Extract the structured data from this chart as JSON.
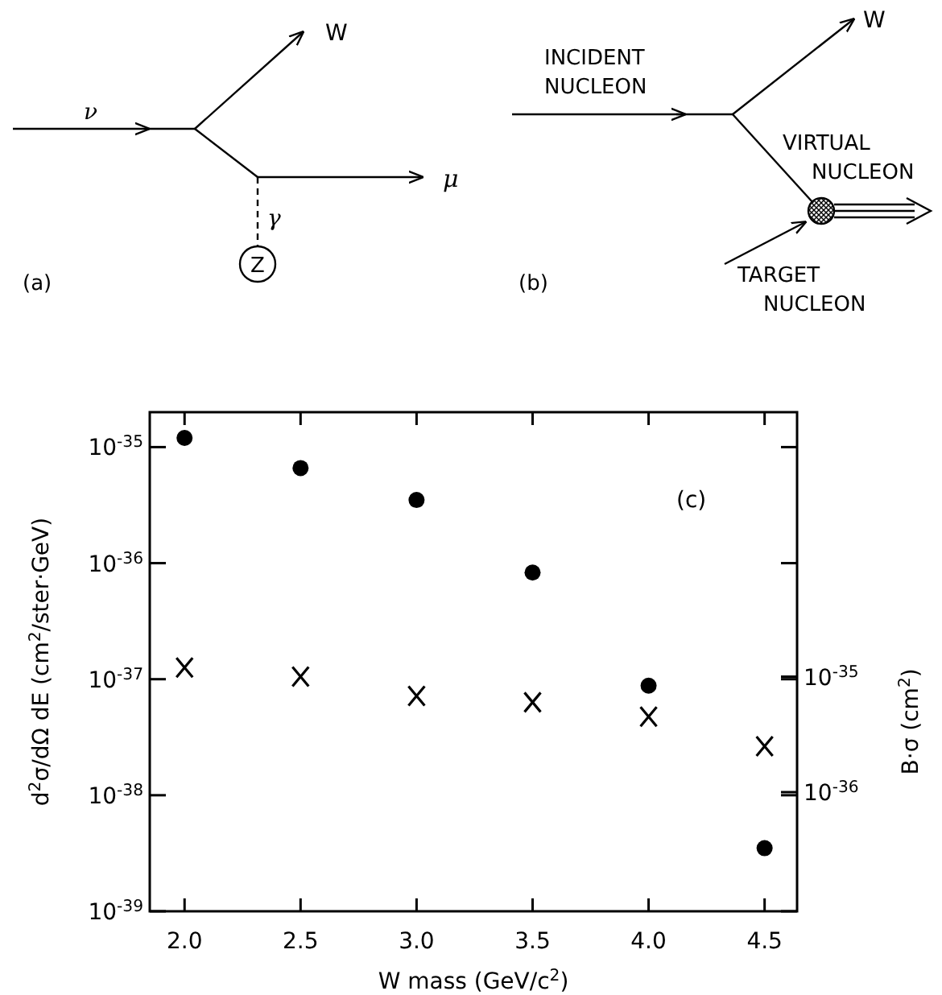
{
  "chart_data": {
    "type": "scatter",
    "xlabel": "W mass (GeV/c$^{2}$)",
    "ylabel": "d$^{2}$σ/dΩ dE (cm$^{2}$/ster·GeV)",
    "y2label": "B·σ (cm$^{2}$)",
    "x": [
      2.0,
      2.5,
      3.0,
      3.5,
      4.0,
      4.5
    ],
    "series": [
      {
        "marker": "circle",
        "color": "#000000",
        "values": [
          1.2e-35,
          6.6e-36,
          3.5e-36,
          8.3e-37,
          8.8e-38,
          3.5e-39
        ]
      },
      {
        "marker": "cross",
        "color": "#000000",
        "axis": "y2",
        "values": [
          1.2e-35,
          1e-35,
          6.8e-36,
          6e-36,
          4.5e-36,
          2.5e-36
        ]
      }
    ],
    "log": "y",
    "xlim": [
      1.85,
      4.64
    ],
    "xticks": [
      {
        "value": 2,
        "label": "2.0"
      },
      2.5,
      {
        "value": 3,
        "label": "3.0"
      },
      3.5,
      {
        "value": 4,
        "label": "4.0"
      },
      4.5
    ],
    "ylim": [
      1e-39,
      2e-35
    ],
    "yticks": [
      {
        "value": 1e-39,
        "label": "10$^{-39}$"
      },
      {
        "value": 1e-38,
        "label": "10$^{-38}$"
      },
      {
        "value": 1e-37,
        "label": "10$^{-37}$"
      },
      {
        "value": 1e-36,
        "label": "10$^{-36}$"
      },
      {
        "value": 1e-35,
        "label": "10$^{-35}$"
      }
    ],
    "y2lim": [
      9.3e-38,
      1.95e-33
    ],
    "y2ticks": [
      {
        "value": 1e-36,
        "label": "10$^{-36}$"
      },
      {
        "value": 1e-35,
        "label": "10$^{-35}$"
      }
    ],
    "grid": false,
    "annotations": [
      "(c)",
      "ν",
      "W",
      "μ",
      "γ",
      "Z",
      "(a)",
      "INCIDENT NUCLEON",
      "W",
      "VIRTUAL NUCLEON",
      "TARGET NUCLEON",
      "(b)"
    ]
  }
}
